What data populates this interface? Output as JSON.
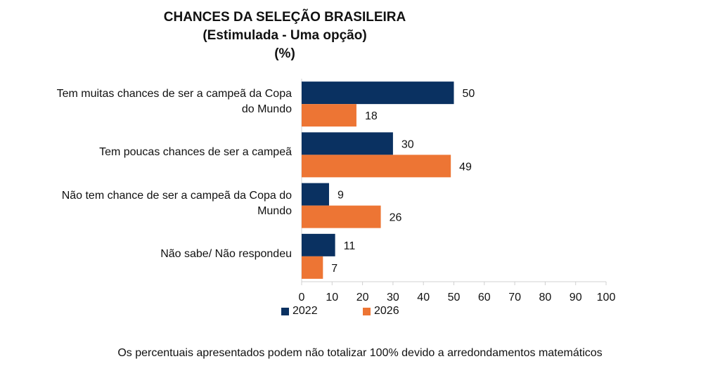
{
  "chart_data": {
    "type": "bar",
    "orientation": "horizontal",
    "title": "CHANCES DA SELEÇÃO BRASILEIRA",
    "subtitle": "(Estimulada - Uma opção)",
    "unit": "(%)",
    "categories": [
      "Tem muitas chances de ser a campeã da Copa do Mundo",
      "Tem poucas chances de ser a campeã",
      "Não tem chance de ser a campeã da Copa do Mundo",
      "Não sabe/ Não respondeu"
    ],
    "series": [
      {
        "name": "2022",
        "color": "#0a3161",
        "values": [
          50,
          30,
          9,
          11
        ]
      },
      {
        "name": "2026",
        "color": "#ed7534",
        "values": [
          18,
          49,
          26,
          7
        ]
      }
    ],
    "xlim": [
      0,
      100
    ],
    "x_ticks": [
      0,
      10,
      20,
      30,
      40,
      50,
      60,
      70,
      80,
      90,
      100
    ],
    "grid": false,
    "legend_position": "bottom"
  },
  "footnote": "Os percentuais apresentados podem não totalizar 100% devido a arredondamentos matemáticos"
}
